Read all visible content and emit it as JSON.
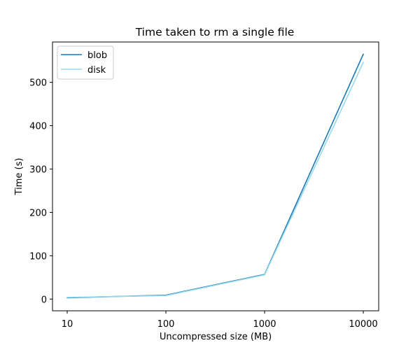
{
  "chart_data": {
    "type": "line",
    "title": "Time taken to rm a single file",
    "xlabel": "Uncompressed size (MB)",
    "ylabel": "Time (s)",
    "x_scale": "log",
    "x": [
      10,
      100,
      1000,
      10000
    ],
    "x_tick_labels": [
      "10",
      "100",
      "1000",
      "10000"
    ],
    "y_ticks": [
      0,
      100,
      200,
      300,
      400,
      500
    ],
    "y_tick_labels": [
      "0",
      "100",
      "200",
      "300",
      "400",
      "500"
    ],
    "ylim": [
      -27,
      593
    ],
    "grid": false,
    "legend_position": "top-left",
    "series": [
      {
        "name": "blob",
        "color": "#1f77b4",
        "values": [
          3,
          9,
          57,
          565
        ]
      },
      {
        "name": "disk",
        "color": "#94dbeb",
        "values": [
          4,
          8,
          56,
          546
        ]
      }
    ]
  }
}
